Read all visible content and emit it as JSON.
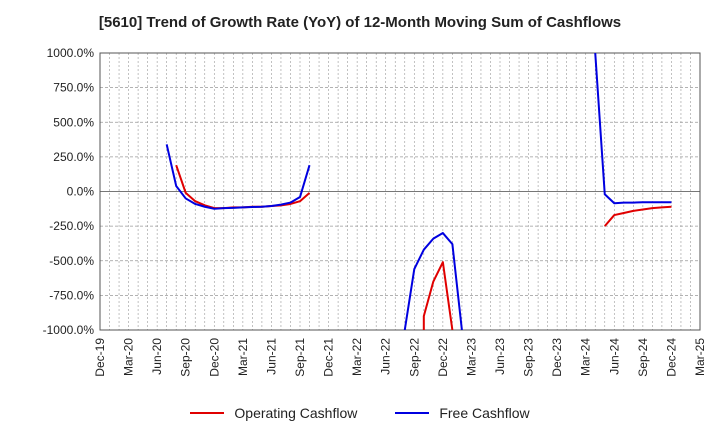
{
  "title": "[5610]  Trend of Growth Rate (YoY) of 12-Month Moving Sum of Cashflows",
  "chart_data": {
    "type": "line",
    "title": "[5610]  Trend of Growth Rate (YoY) of 12-Month Moving Sum of Cashflows",
    "xlabel": "",
    "ylabel": "",
    "ylim": [
      -1000,
      1000
    ],
    "yticks": [
      1000,
      750,
      500,
      250,
      0,
      -250,
      -500,
      -750,
      -1000
    ],
    "ytick_labels": [
      "1000.0%",
      "750.0%",
      "500.0%",
      "250.0%",
      "0.0%",
      "-250.0%",
      "-500.0%",
      "-750.0%",
      "-1000.0%"
    ],
    "xticks": [
      "Dec-19",
      "Mar-20",
      "Jun-20",
      "Sep-20",
      "Dec-20",
      "Mar-21",
      "Jun-21",
      "Sep-21",
      "Dec-21",
      "Mar-22",
      "Jun-22",
      "Sep-22",
      "Dec-22",
      "Mar-23",
      "Jun-23",
      "Sep-23",
      "Dec-23",
      "Mar-24",
      "Jun-24",
      "Sep-24",
      "Dec-24",
      "Mar-25"
    ],
    "grid": true,
    "legend_position": "bottom",
    "series": [
      {
        "name": "Operating Cashflow",
        "color": "#e00000",
        "segments": [
          [
            [
              "2020-08",
              190
            ],
            [
              "2020-09",
              -10
            ],
            [
              "2020-10",
              -70
            ],
            [
              "2020-11",
              -100
            ],
            [
              "2020-12",
              -120
            ],
            [
              "2021-01",
              -120
            ],
            [
              "2021-02",
              -115
            ],
            [
              "2021-03",
              -115
            ],
            [
              "2021-04",
              -110
            ],
            [
              "2021-05",
              -110
            ],
            [
              "2021-06",
              -105
            ],
            [
              "2021-07",
              -100
            ],
            [
              "2021-08",
              -90
            ],
            [
              "2021-09",
              -70
            ],
            [
              "2021-10",
              -10
            ]
          ],
          [
            [
              "2022-10",
              -1000
            ],
            [
              "2022-10",
              -900
            ],
            [
              "2022-11",
              -650
            ],
            [
              "2022-12",
              -510
            ],
            [
              "2023-01",
              -1000
            ]
          ],
          [
            [
              "2024-05",
              -250
            ],
            [
              "2024-06",
              -170
            ],
            [
              "2024-07",
              -155
            ],
            [
              "2024-08",
              -140
            ],
            [
              "2024-09",
              -130
            ],
            [
              "2024-10",
              -120
            ],
            [
              "2024-11",
              -115
            ],
            [
              "2024-12",
              -110
            ]
          ]
        ]
      },
      {
        "name": "Free Cashflow",
        "color": "#0000e0",
        "segments": [
          [
            [
              "2020-07",
              340
            ],
            [
              "2020-08",
              40
            ],
            [
              "2020-09",
              -50
            ],
            [
              "2020-10",
              -90
            ],
            [
              "2020-11",
              -110
            ],
            [
              "2020-12",
              -125
            ],
            [
              "2021-01",
              -120
            ],
            [
              "2021-02",
              -118
            ],
            [
              "2021-03",
              -115
            ],
            [
              "2021-04",
              -112
            ],
            [
              "2021-05",
              -110
            ],
            [
              "2021-06",
              -105
            ],
            [
              "2021-07",
              -95
            ],
            [
              "2021-08",
              -80
            ],
            [
              "2021-09",
              -40
            ],
            [
              "2021-10",
              190
            ]
          ],
          [
            [
              "2022-08",
              -1000
            ],
            [
              "2022-09",
              -560
            ],
            [
              "2022-10",
              -420
            ],
            [
              "2022-11",
              -340
            ],
            [
              "2022-12",
              -300
            ],
            [
              "2023-01",
              -380
            ],
            [
              "2023-02",
              -1000
            ]
          ],
          [
            [
              "2024-04",
              1000
            ],
            [
              "2024-05",
              -20
            ],
            [
              "2024-06",
              -85
            ],
            [
              "2024-07",
              -80
            ],
            [
              "2024-08",
              -80
            ],
            [
              "2024-09",
              -78
            ],
            [
              "2024-10",
              -78
            ],
            [
              "2024-11",
              -78
            ],
            [
              "2024-12",
              -78
            ]
          ]
        ]
      }
    ]
  }
}
